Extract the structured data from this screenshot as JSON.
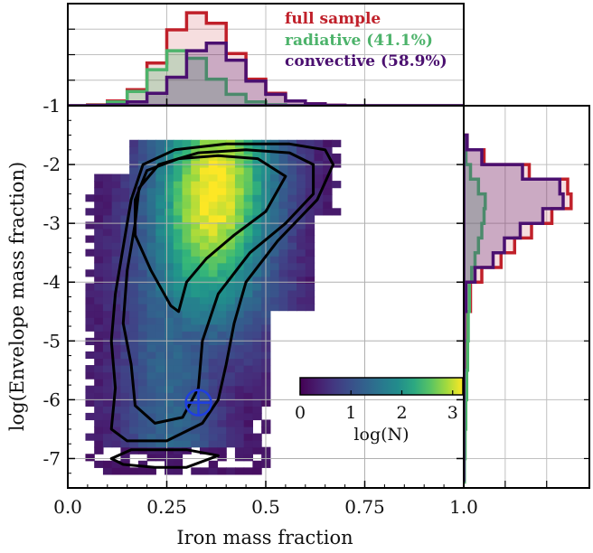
{
  "chart_data": {
    "type": "heatmap",
    "title": "",
    "xlabel": "Iron mass fraction",
    "ylabel": "log(Envelope mass fraction)",
    "xlim": [
      0.0,
      1.0
    ],
    "ylim": [
      -7.5,
      -1.0
    ],
    "x_ticks": [
      "0.0",
      "0.25",
      "0.5",
      "0.75",
      "1.0"
    ],
    "y_ticks": [
      "-1",
      "-2",
      "-3",
      "-4",
      "-5",
      "-6",
      "-7"
    ],
    "top_panel_tick": "-1",
    "grid": true,
    "colorbar": {
      "label": "log(N)",
      "ticks": [
        "0",
        "1",
        "2",
        "3"
      ],
      "range": [
        0,
        3.2
      ],
      "colormap": "viridis"
    },
    "legend": {
      "placement": "top-right of top panel",
      "entries": [
        {
          "label": "full sample",
          "color": "#c0202a"
        },
        {
          "label": "radiative (41.1%)",
          "color": "#4db36b"
        },
        {
          "label": "convective (58.9%)",
          "color": "#4b1070"
        }
      ]
    },
    "marker": {
      "symbol": "earth-symbol",
      "x": 0.33,
      "y": -6.05,
      "color": "#1f3fe0"
    },
    "density_peak": {
      "x": 0.37,
      "y": -2.5
    },
    "contours": [
      [
        [
          0.26,
          -4.4
        ],
        [
          0.21,
          -3.8
        ],
        [
          0.17,
          -3.2
        ],
        [
          0.17,
          -2.6
        ],
        [
          0.2,
          -2.1
        ],
        [
          0.28,
          -1.9
        ],
        [
          0.38,
          -1.85
        ],
        [
          0.48,
          -1.9
        ],
        [
          0.55,
          -2.2
        ],
        [
          0.5,
          -2.8
        ],
        [
          0.42,
          -3.2
        ],
        [
          0.35,
          -3.6
        ],
        [
          0.3,
          -4.0
        ],
        [
          0.28,
          -4.5
        ],
        [
          0.26,
          -4.4
        ]
      ],
      [
        [
          0.17,
          -6.1
        ],
        [
          0.16,
          -5.4
        ],
        [
          0.14,
          -4.7
        ],
        [
          0.15,
          -3.8
        ],
        [
          0.17,
          -3.0
        ],
        [
          0.18,
          -2.4
        ],
        [
          0.23,
          -2.0
        ],
        [
          0.33,
          -1.8
        ],
        [
          0.45,
          -1.75
        ],
        [
          0.56,
          -1.8
        ],
        [
          0.62,
          -2.0
        ],
        [
          0.62,
          -2.5
        ],
        [
          0.55,
          -3.0
        ],
        [
          0.46,
          -3.5
        ],
        [
          0.38,
          -4.2
        ],
        [
          0.34,
          -5.0
        ],
        [
          0.33,
          -5.8
        ],
        [
          0.29,
          -6.3
        ],
        [
          0.22,
          -6.4
        ],
        [
          0.17,
          -6.1
        ]
      ],
      [
        [
          0.11,
          -6.5
        ],
        [
          0.12,
          -5.8
        ],
        [
          0.11,
          -5.0
        ],
        [
          0.12,
          -4.2
        ],
        [
          0.14,
          -3.4
        ],
        [
          0.16,
          -2.6
        ],
        [
          0.19,
          -2.0
        ],
        [
          0.27,
          -1.75
        ],
        [
          0.4,
          -1.65
        ],
        [
          0.56,
          -1.65
        ],
        [
          0.65,
          -1.75
        ],
        [
          0.67,
          -2.0
        ],
        [
          0.63,
          -2.6
        ],
        [
          0.53,
          -3.3
        ],
        [
          0.45,
          -4.0
        ],
        [
          0.42,
          -4.7
        ],
        [
          0.4,
          -5.4
        ],
        [
          0.38,
          -6.0
        ],
        [
          0.34,
          -6.4
        ],
        [
          0.25,
          -6.7
        ],
        [
          0.15,
          -6.7
        ],
        [
          0.11,
          -6.5
        ]
      ],
      [
        [
          0.11,
          -7.0
        ],
        [
          0.16,
          -6.85
        ],
        [
          0.24,
          -6.85
        ],
        [
          0.3,
          -6.85
        ],
        [
          0.38,
          -6.95
        ],
        [
          0.3,
          -7.15
        ],
        [
          0.22,
          -7.15
        ],
        [
          0.14,
          -7.1
        ],
        [
          0.11,
          -7.0
        ]
      ]
    ],
    "top_histogram": {
      "x_edges": [
        0.0,
        0.05,
        0.1,
        0.15,
        0.2,
        0.25,
        0.3,
        0.35,
        0.4,
        0.45,
        0.5,
        0.55,
        0.6,
        0.65,
        0.7,
        0.75,
        0.8,
        0.85,
        0.9,
        0.95,
        1.0
      ],
      "series": [
        {
          "name": "full sample",
          "values": [
            0,
            0.01,
            0.05,
            0.17,
            0.45,
            0.8,
            0.98,
            0.87,
            0.55,
            0.28,
            0.13,
            0.05,
            0.02,
            0.005,
            0,
            0,
            0,
            0,
            0,
            0
          ]
        },
        {
          "name": "radiative (41.1%)",
          "values": [
            0,
            0.005,
            0.04,
            0.15,
            0.38,
            0.58,
            0.5,
            0.28,
            0.12,
            0.04,
            0.01,
            0.003,
            0,
            0,
            0,
            0,
            0,
            0,
            0,
            0
          ]
        },
        {
          "name": "convective (58.9%)",
          "values": [
            0,
            0.003,
            0.01,
            0.04,
            0.13,
            0.3,
            0.58,
            0.66,
            0.48,
            0.26,
            0.12,
            0.05,
            0.02,
            0.005,
            0,
            0,
            0,
            0,
            0,
            0
          ]
        }
      ]
    },
    "right_histogram": {
      "y_edges": [
        -1.5,
        -1.75,
        -2.0,
        -2.25,
        -2.5,
        -2.75,
        -3.0,
        -3.25,
        -3.5,
        -3.75,
        -4.0,
        -4.5,
        -5.0,
        -5.5,
        -6.0,
        -6.5,
        -7.0,
        -7.4
      ],
      "series": [
        {
          "name": "full sample",
          "values": [
            0.03,
            0.18,
            0.58,
            0.92,
            0.95,
            0.78,
            0.6,
            0.45,
            0.33,
            0.16,
            0.06,
            0.035,
            0.028,
            0.022,
            0.016,
            0.01,
            0.005
          ]
        },
        {
          "name": "radiative (41.1%)",
          "values": [
            0.005,
            0.02,
            0.06,
            0.13,
            0.19,
            0.18,
            0.16,
            0.13,
            0.1,
            0.07,
            0.05,
            0.04,
            0.034,
            0.026,
            0.018,
            0.012,
            0.006
          ]
        },
        {
          "name": "convective (58.9%)",
          "values": [
            0.03,
            0.16,
            0.52,
            0.85,
            0.88,
            0.7,
            0.5,
            0.36,
            0.26,
            0.1,
            0.02,
            0.005,
            0.002,
            0.001,
            0,
            0,
            0
          ]
        }
      ]
    }
  }
}
